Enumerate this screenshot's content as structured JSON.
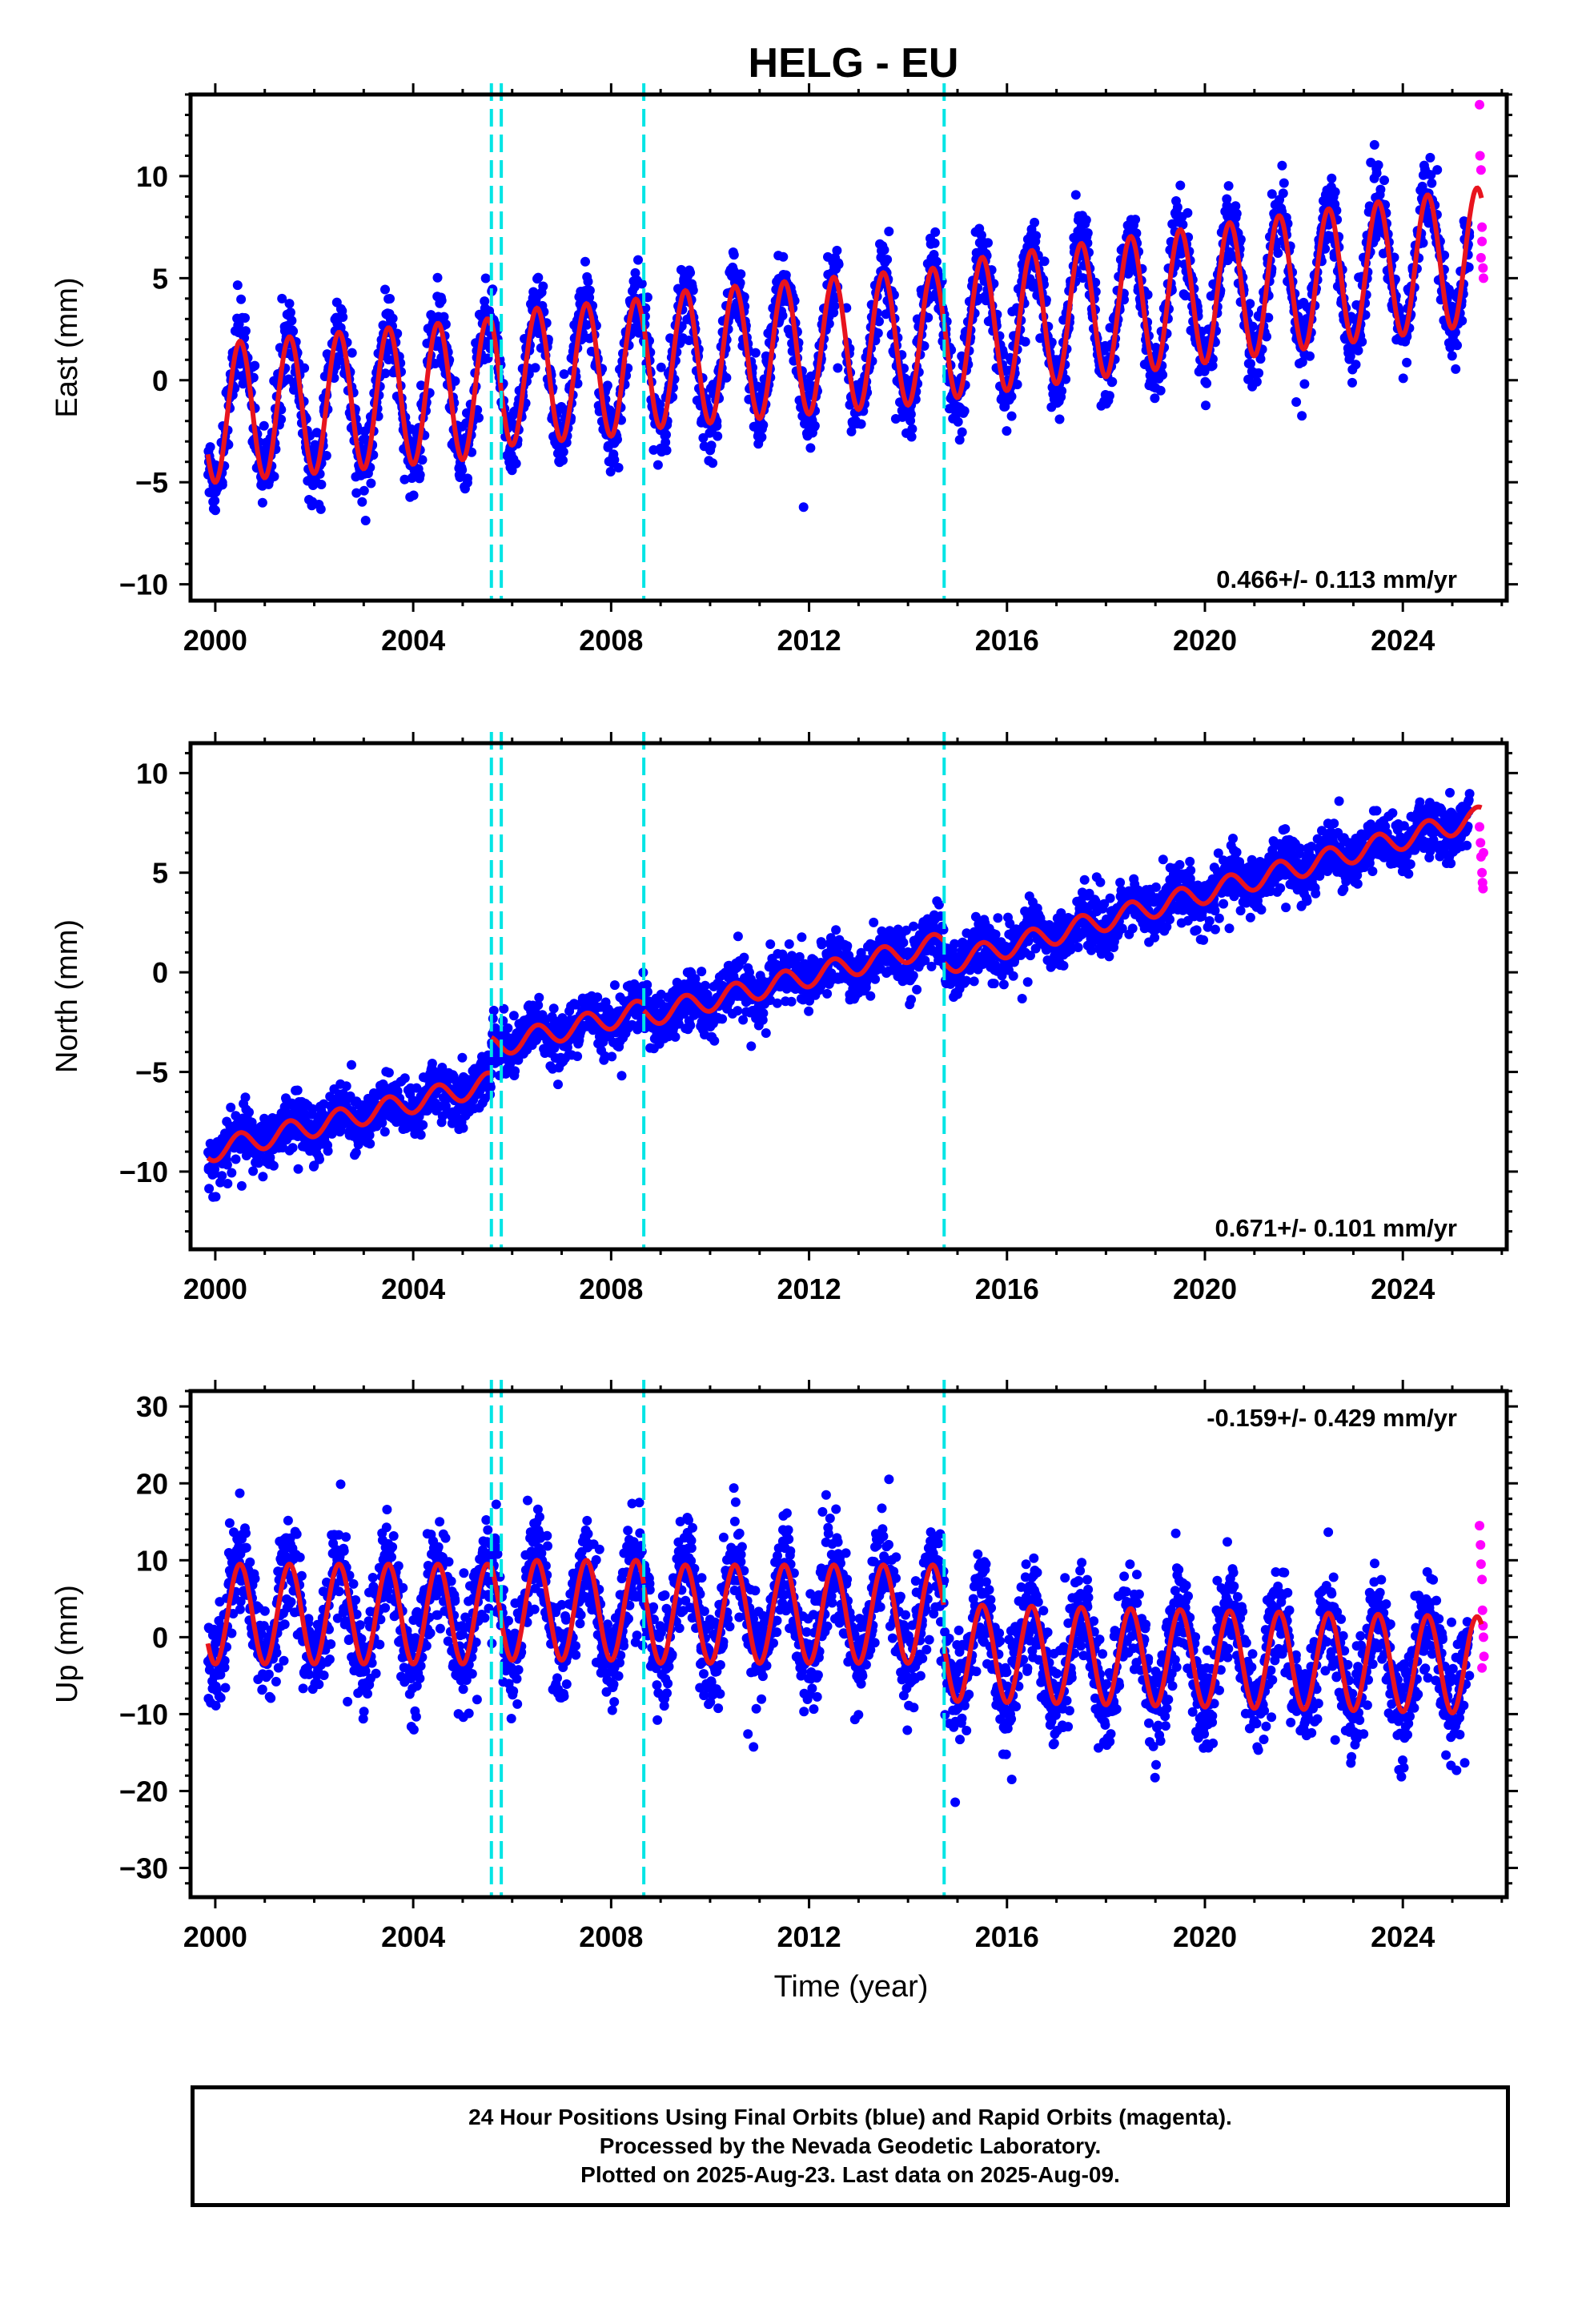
{
  "title": "HELG - EU",
  "xlabel": "Time (year)",
  "footer": {
    "line1": "24 Hour Positions Using Final Orbits (blue) and Rapid Orbits (magenta).",
    "line2": "Processed by the Nevada Geodetic Laboratory.",
    "line3": "Plotted on 2025-Aug-23. Last data on 2025-Aug-09."
  },
  "colors": {
    "final_orbits": "#0000ff",
    "rapid_orbits": "#ff00ff",
    "model_fit": "#e8141e",
    "step_markers": "#00e5e5"
  },
  "chart_data": [
    {
      "type": "scatter",
      "component": "east",
      "ylabel": "East (mm)",
      "xlim": [
        1999.5,
        2026.1
      ],
      "ylim": [
        -10.8,
        14.0
      ],
      "xticks": [
        2000,
        2004,
        2008,
        2012,
        2016,
        2020,
        2024
      ],
      "yticks": [
        -10,
        -5,
        0,
        5,
        10
      ],
      "velocity_label": "0.466+/- 0.113 mm/yr",
      "velocity_label_position": "bottom-right",
      "grid": false,
      "steps": [
        2005.58,
        2005.78,
        2008.66,
        2014.73
      ],
      "series": [
        {
          "name": "Final Orbits",
          "color": "#0000ff",
          "x_range": [
            1999.85,
            2025.35
          ],
          "base": -2.0,
          "trend": 0.22,
          "amplitude": 3.6,
          "scatter": 1.6
        },
        {
          "name": "Rapid Orbits",
          "color": "#ff00ff",
          "points": [
            [
              2025.55,
              13.5
            ],
            [
              2025.56,
              11.0
            ],
            [
              2025.58,
              10.3
            ],
            [
              2025.6,
              7.5
            ],
            [
              2025.6,
              6.8
            ],
            [
              2025.62,
              5.5
            ],
            [
              2025.63,
              5.0
            ],
            [
              2025.58,
              6.0
            ]
          ]
        }
      ],
      "fit": {
        "color": "#e8141e",
        "segments": [
          {
            "x": [
              1999.85,
              2005.58
            ],
            "offset": -1.6,
            "rate": 0.22,
            "amplitude": 3.4
          },
          {
            "x": [
              2005.58,
              2008.66
            ],
            "offset": -1.2,
            "rate": 0.22,
            "amplitude": 3.3
          },
          {
            "x": [
              2008.66,
              2014.73
            ],
            "offset": -1.0,
            "rate": 0.22,
            "amplitude": 3.3
          },
          {
            "x": [
              2014.73,
              2025.6
            ],
            "offset": -2.6,
            "rate": 0.34,
            "amplitude": 3.35
          }
        ]
      }
    },
    {
      "type": "scatter",
      "component": "north",
      "ylabel": "North (mm)",
      "xlim": [
        1999.5,
        2026.1
      ],
      "ylim": [
        -13.9,
        11.5
      ],
      "xticks": [
        2000,
        2004,
        2008,
        2012,
        2016,
        2020,
        2024
      ],
      "yticks": [
        -10,
        -5,
        0,
        5,
        10
      ],
      "velocity_label": "0.671+/- 0.101 mm/yr",
      "velocity_label_position": "bottom-right",
      "grid": false,
      "steps": [
        2005.58,
        2005.78,
        2008.66,
        2014.73
      ],
      "series": [
        {
          "name": "Final Orbits",
          "color": "#0000ff",
          "x_range": [
            1999.85,
            2025.35
          ],
          "base": -8.6,
          "trend": 0.62,
          "amplitude": 0.5,
          "scatter": 1.2
        },
        {
          "name": "Rapid Orbits",
          "color": "#ff00ff",
          "points": [
            [
              2025.55,
              7.3
            ],
            [
              2025.57,
              6.5
            ],
            [
              2025.58,
              5.8
            ],
            [
              2025.6,
              5.0
            ],
            [
              2025.61,
              4.5
            ],
            [
              2025.62,
              4.2
            ],
            [
              2025.63,
              6.0
            ]
          ]
        }
      ],
      "fit": {
        "color": "#e8141e",
        "segments": [
          {
            "x": [
              1999.85,
              2005.58
            ],
            "offset": -8.9,
            "rate": 0.6,
            "amplitude": 0.55
          },
          {
            "x": [
              2005.58,
              2008.66
            ],
            "offset": -7.1,
            "rate": 0.6,
            "amplitude": 0.55
          },
          {
            "x": [
              2008.66,
              2014.73
            ],
            "offset": -7.5,
            "rate": 0.61,
            "amplitude": 0.55
          },
          {
            "x": [
              2014.73,
              2025.6
            ],
            "offset": -9.6,
            "rate": 0.68,
            "amplitude": 0.55
          }
        ]
      }
    },
    {
      "type": "scatter",
      "component": "up",
      "ylabel": "Up (mm)",
      "xlim": [
        1999.5,
        2026.1
      ],
      "ylim": [
        -33.8,
        32.0
      ],
      "xticks": [
        2000,
        2004,
        2008,
        2012,
        2016,
        2020,
        2024
      ],
      "yticks": [
        -30,
        -20,
        -10,
        0,
        10,
        20,
        30
      ],
      "velocity_label": "-0.159+/- 0.429 mm/yr",
      "velocity_label_position": "top-right",
      "grid": false,
      "steps": [
        2005.58,
        2005.78,
        2008.66,
        2014.73
      ],
      "series": [
        {
          "name": "Final Orbits",
          "color": "#0000ff",
          "x_range": [
            1999.85,
            2025.35
          ],
          "base": 3.0,
          "trend": -0.08,
          "amplitude": 6.5,
          "scatter": 6.0
        },
        {
          "name": "Rapid Orbits",
          "color": "#ff00ff",
          "points": [
            [
              2025.55,
              14.5
            ],
            [
              2025.57,
              12.0
            ],
            [
              2025.58,
              9.5
            ],
            [
              2025.6,
              7.5
            ],
            [
              2025.61,
              3.5
            ],
            [
              2025.62,
              1.5
            ],
            [
              2025.63,
              0.0
            ],
            [
              2025.64,
              -2.5
            ],
            [
              2025.6,
              -4.0
            ]
          ]
        }
      ],
      "fit": {
        "color": "#e8141e",
        "segments": [
          {
            "x": [
              1999.85,
              2005.58
            ],
            "offset": 3.0,
            "rate": 0.0,
            "amplitude": 6.5
          },
          {
            "x": [
              2005.58,
              2008.66
            ],
            "offset": 3.5,
            "rate": 0.0,
            "amplitude": 6.5
          },
          {
            "x": [
              2008.66,
              2014.73
            ],
            "offset": 3.0,
            "rate": 0.0,
            "amplitude": 6.4
          },
          {
            "x": [
              2014.73,
              2025.6
            ],
            "offset": 0.2,
            "rate": -0.15,
            "amplitude": 6.3
          }
        ]
      }
    }
  ]
}
